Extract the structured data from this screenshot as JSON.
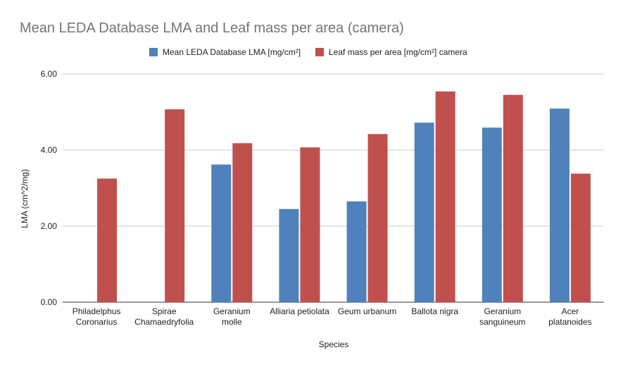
{
  "chart_data": {
    "type": "bar",
    "title": "Mean LEDA Database LMA and Leaf mass per area (camera)",
    "xlabel": "Species",
    "ylabel": "LMA (cm^2/mg)",
    "ylim": [
      0,
      6
    ],
    "yticks": [
      "0.00",
      "2.00",
      "4.00",
      "6.00"
    ],
    "grid": true,
    "legend_position": "top",
    "categories": [
      [
        "Philadelphus",
        "Coronarius"
      ],
      [
        "Spirae",
        "Chamaedryfolia"
      ],
      [
        "Geranium",
        "molle"
      ],
      [
        "Alliaria petiolata"
      ],
      [
        "Geum urbanum"
      ],
      [
        "Ballota nigra"
      ],
      [
        "Geranium",
        "sanguineum"
      ],
      [
        "Acer",
        "platanoides"
      ]
    ],
    "series": [
      {
        "name": "Mean LEDA Database LMA [mg/cm²]",
        "color": "#4f81bd",
        "values": [
          null,
          null,
          3.62,
          2.45,
          2.65,
          4.72,
          4.59,
          5.09
        ]
      },
      {
        "name": "Leaf mass per area [mg/cm²] camera",
        "color": "#c0504d",
        "values": [
          3.25,
          5.07,
          4.18,
          4.07,
          4.42,
          5.54,
          5.45,
          3.38
        ]
      }
    ]
  }
}
